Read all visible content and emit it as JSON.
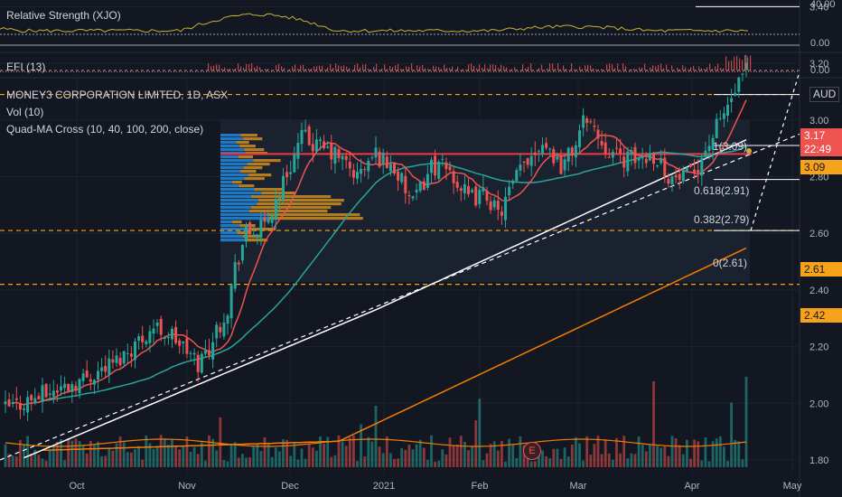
{
  "indicator_rs": {
    "title": "Relative Strength (XJO)",
    "ticks": [
      "40.00",
      "0.00"
    ]
  },
  "indicator_efi": {
    "title": "EFI (13)",
    "ticks": [
      "0.00"
    ]
  },
  "main": {
    "symbol": "MONEY3 CORPORATION LIMITED, 1D, ASX",
    "vol": "Vol (10)",
    "ma": "Quad-MA Cross (10, 40, 100, 200, close)",
    "currency": "AUD"
  },
  "price_tags": [
    {
      "value": "3.17",
      "color": "#ef5350",
      "text_color": "#ffffff"
    },
    {
      "value": "22:49",
      "color": "#ef5350",
      "text_color": "#ffffff"
    },
    {
      "value": "3.09",
      "color": "#f7a21b",
      "text_color": "#131722"
    },
    {
      "value": "2.61",
      "color": "#f7a21b",
      "text_color": "#131722"
    },
    {
      "value": "2.42",
      "color": "#f7a21b",
      "text_color": "#131722"
    }
  ],
  "fib_labels": [
    {
      "text": "1(3.09)"
    },
    {
      "text": "0.618(2.91)"
    },
    {
      "text": "0.382(2.79)"
    },
    {
      "text": "0(2.61)"
    }
  ],
  "earnings_marker": "E",
  "colors": {
    "up": "#26a69a",
    "down": "#ef5350",
    "ma10": "#ef5350",
    "ma40": "#26a69a",
    "ma100": "#ffffff",
    "ma200": "#f57c00",
    "hline": "#f7a21b",
    "poc": "#f23645",
    "rs_line": "#c8b236"
  },
  "chart_data": {
    "type": "candlestick",
    "y_ticks": [
      "3.40",
      "3.20",
      "3.00",
      "2.80",
      "2.60",
      "2.40",
      "2.20",
      "2.00",
      "1.80"
    ],
    "ylim": [
      1.78,
      3.42
    ],
    "x_ticks": [
      "Oct",
      "Nov",
      "Dec",
      "2021",
      "Feb",
      "Mar",
      "Apr",
      "May"
    ],
    "horizontal_levels": [
      3.09,
      2.61,
      2.42
    ],
    "poc_level": 2.88,
    "last_price": 3.17,
    "fib": [
      3.09,
      2.91,
      2.79,
      2.61
    ],
    "close_anchors": [
      [
        0,
        1.98
      ],
      [
        10,
        2.03
      ],
      [
        20,
        2.08
      ],
      [
        30,
        2.15
      ],
      [
        40,
        2.27
      ],
      [
        45,
        2.24
      ],
      [
        52,
        2.14
      ],
      [
        55,
        2.2
      ],
      [
        60,
        2.34
      ],
      [
        62,
        2.48
      ],
      [
        65,
        2.6
      ],
      [
        70,
        2.62
      ],
      [
        75,
        2.78
      ],
      [
        80,
        2.94
      ],
      [
        85,
        2.9
      ],
      [
        90,
        2.87
      ],
      [
        95,
        2.8
      ],
      [
        100,
        2.88
      ],
      [
        105,
        2.83
      ],
      [
        110,
        2.7
      ],
      [
        115,
        2.84
      ],
      [
        120,
        2.82
      ],
      [
        125,
        2.72
      ],
      [
        130,
        2.74
      ],
      [
        133,
        2.66
      ],
      [
        140,
        2.85
      ],
      [
        145,
        2.93
      ],
      [
        150,
        2.84
      ],
      [
        153,
        2.89
      ],
      [
        157,
        3.02
      ],
      [
        160,
        2.94
      ],
      [
        165,
        2.87
      ],
      [
        170,
        2.86
      ],
      [
        175,
        2.88
      ],
      [
        180,
        2.79
      ],
      [
        185,
        2.8
      ],
      [
        190,
        2.92
      ],
      [
        195,
        3.05
      ],
      [
        200,
        3.17
      ]
    ]
  }
}
